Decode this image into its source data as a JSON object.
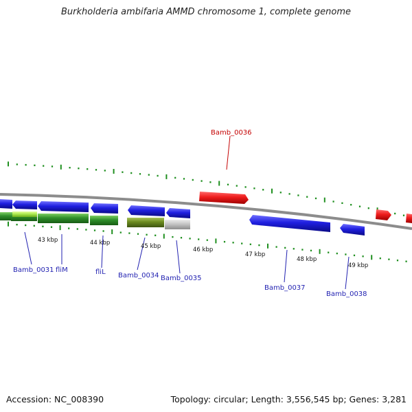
{
  "title": "Burkholderia ambifaria AMMD chromosome 1, complete genome",
  "accession": "Accession: NC_008390",
  "topology": "Topology: circular; Length: 3,556,545 bp; Genes: 3,281",
  "colors": {
    "background": "#ffffff",
    "backbone": "#8c8c8c",
    "forward_gene": "#e8161b",
    "reverse_gene": "#1b1bd6",
    "cds_green": "#2f8f2a",
    "cds_light_green": "#a6e64a",
    "cds_olive": "#6b8a1f",
    "cds_grey": "#bdbdbd",
    "tick": "#1f8f1f",
    "gene_label_blue": "#1f1fb0",
    "gene_label_red": "#c40000"
  },
  "scale_labels": [
    "43 kbp",
    "44 kbp",
    "45 kbp",
    "46 kbp",
    "47 kbp",
    "48 kbp",
    "49 kbp"
  ],
  "gene_labels": [
    {
      "text": "Bamb_0031",
      "strand": "reverse"
    },
    {
      "text": "fliM",
      "strand": "reverse"
    },
    {
      "text": "fliL",
      "strand": "reverse"
    },
    {
      "text": "Bamb_0034",
      "strand": "reverse"
    },
    {
      "text": "Bamb_0035",
      "strand": "reverse"
    },
    {
      "text": "Bamb_0036",
      "strand": "forward"
    },
    {
      "text": "Bamb_0037",
      "strand": "reverse"
    },
    {
      "text": "Bamb_0038",
      "strand": "reverse"
    }
  ]
}
